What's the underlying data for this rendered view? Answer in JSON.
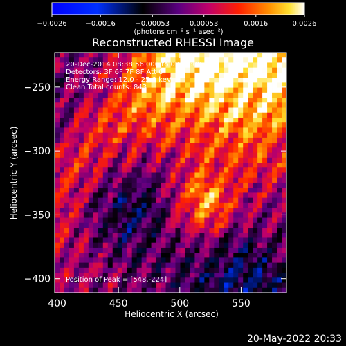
{
  "chart_data": {
    "type": "heatmap",
    "title": "Reconstructed RHESSI Image",
    "xlabel": "Heliocentric X (arcsec)",
    "ylabel": "Heliocentric Y (arcsec)",
    "xlim": [
      398,
      587
    ],
    "ylim": [
      -411,
      -223
    ],
    "xticks": [
      400,
      450,
      500,
      550
    ],
    "yticks": [
      -250,
      -300,
      -350,
      -400
    ],
    "xtick_labels": [
      "400",
      "450",
      "500",
      "550"
    ],
    "ytick_labels": [
      "−250",
      "−300",
      "−350",
      "−400"
    ],
    "colorbar": {
      "range": [
        -0.0026,
        0.0026
      ],
      "ticks": [
        -0.0026,
        -0.0016,
        -0.00053,
        0.00053,
        0.0016,
        0.0026
      ],
      "tick_labels": [
        "−0.0026",
        "−0.0016",
        "−0.00053",
        "0.00053",
        "0.0016",
        "0.0026"
      ],
      "units_label": "(photons cm⁻² s⁻¹ asec⁻²)",
      "colormap": [
        "#0000ff",
        "#000000",
        "#8a00a0",
        "#ff2000",
        "#ff9000",
        "#ffffff"
      ]
    },
    "annotations": [
      "20-Dec-2014 08:38:56.000 to 08:42:08.000",
      "Detectors: 3F 6F 7F 8F Att 0",
      "Energy Range: 12.0 - 25.0 keV",
      "Clean    Total counts: 843"
    ],
    "peak_label": "Position of Peak = [548,-224]",
    "peak": [
      548,
      -224
    ]
  },
  "footer": {
    "timestamp": "20-May-2022 20:33"
  }
}
